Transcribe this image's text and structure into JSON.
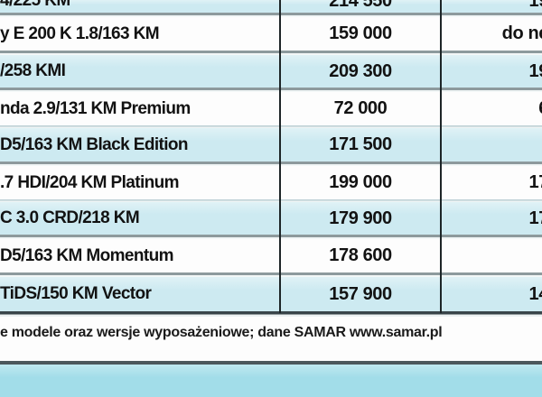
{
  "table": {
    "columns": [
      "model",
      "price_pln",
      "note"
    ],
    "rows": [
      {
        "model": "4/225 KM",
        "price": "214 550",
        "note": "19"
      },
      {
        "model": "y E 200 K 1.8/163 KM",
        "price": "159 000",
        "note": "do ne"
      },
      {
        "model": "/258 KMI",
        "price": "209 300",
        "note": "19"
      },
      {
        "model": "nda 2.9/131 KM Premium",
        "price": "72 000",
        "note": "6"
      },
      {
        "model": "D5/163 KM Black Edition",
        "price": "171 500",
        "note": ""
      },
      {
        "model": ".7 HDI/204 KM Platinum",
        "price": "199 000",
        "note": "17"
      },
      {
        "model": "C 3.0 CRD/218 KM",
        "price": "179 900",
        "note": "17"
      },
      {
        "model": "D5/163 KM Momentum",
        "price": "178 600",
        "note": ""
      },
      {
        "model": "TiDS/150 KM Vector",
        "price": "157 900",
        "note": "14"
      }
    ]
  },
  "footer": {
    "text": "e modele oraz wersje wyposażeniowe; dane SAMAR www.samar.pl"
  },
  "colors": {
    "row_blue": "#cdeaf1",
    "row_white": "#fdfdfd",
    "band_cyan": "#a2dde9",
    "separator_gray": "#8d9a9d",
    "table_border_dark": "#39454a",
    "rule_dark": "#4c585c",
    "text": "#121212"
  }
}
